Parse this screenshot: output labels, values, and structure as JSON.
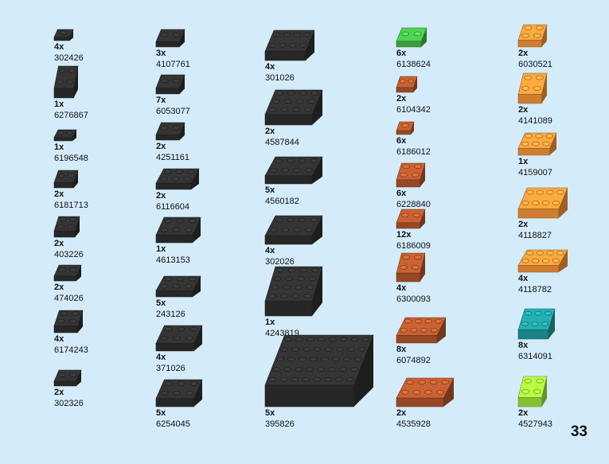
{
  "columns": [
    {
      "items": [
        {
          "qty": "4x",
          "id": "302426",
          "color": "#2e2e2e"
        },
        {
          "qty": "1x",
          "id": "6276867",
          "color": "#2e2e2e"
        },
        {
          "qty": "1x",
          "id": "6196548",
          "color": "#2e2e2e"
        },
        {
          "qty": "2x",
          "id": "6181713",
          "color": "#2e2e2e"
        },
        {
          "qty": "2x",
          "id": "403226",
          "color": "#2e2e2e"
        },
        {
          "qty": "2x",
          "id": "474026",
          "color": "#2e2e2e"
        },
        {
          "qty": "4x",
          "id": "6174243",
          "color": "#2e2e2e"
        },
        {
          "qty": "2x",
          "id": "302326",
          "color": "#2e2e2e"
        }
      ]
    },
    {
      "items": [
        {
          "qty": "3x",
          "id": "4107761",
          "color": "#2e2e2e"
        },
        {
          "qty": "7x",
          "id": "6053077",
          "color": "#2e2e2e"
        },
        {
          "qty": "2x",
          "id": "4251161",
          "color": "#2e2e2e"
        },
        {
          "qty": "2x",
          "id": "6116604",
          "color": "#2e2e2e"
        },
        {
          "qty": "1x",
          "id": "4613153",
          "color": "#2e2e2e"
        },
        {
          "qty": "5x",
          "id": "243126",
          "color": "#2e2e2e"
        },
        {
          "qty": "4x",
          "id": "371026",
          "color": "#2e2e2e"
        },
        {
          "qty": "5x",
          "id": "6254045",
          "color": "#2e2e2e"
        }
      ]
    },
    {
      "items": [
        {
          "qty": "4x",
          "id": "301026",
          "color": "#2e2e2e"
        },
        {
          "qty": "2x",
          "id": "4587844",
          "color": "#2e2e2e"
        },
        {
          "qty": "5x",
          "id": "4560182",
          "color": "#2e2e2e"
        },
        {
          "qty": "4x",
          "id": "302026",
          "color": "#2e2e2e"
        },
        {
          "qty": "1x",
          "id": "4243819",
          "color": "#2e2e2e"
        },
        {
          "qty": "5x",
          "id": "395826",
          "color": "#2e2e2e"
        }
      ]
    },
    {
      "items": [
        {
          "qty": "6x",
          "id": "6138624",
          "color": "#45b848"
        },
        {
          "qty": "2x",
          "id": "6104342",
          "color": "#b0552c"
        },
        {
          "qty": "6x",
          "id": "6186012",
          "color": "#b0552c"
        },
        {
          "qty": "6x",
          "id": "6228840",
          "color": "#b0552c"
        },
        {
          "qty": "12x",
          "id": "6186009",
          "color": "#b0552c"
        },
        {
          "qty": "4x",
          "id": "6300093",
          "color": "#b0552c"
        },
        {
          "qty": "8x",
          "id": "6074892",
          "color": "#b0552c"
        },
        {
          "qty": "2x",
          "id": "4535928",
          "color": "#b0552c"
        }
      ]
    },
    {
      "items": [
        {
          "qty": "2x",
          "id": "6030521",
          "color": "#f39337"
        },
        {
          "qty": "2x",
          "id": "4141089",
          "color": "#f39337"
        },
        {
          "qty": "1x",
          "id": "4159007",
          "color": "#f39337"
        },
        {
          "qty": "2x",
          "id": "4118827",
          "color": "#f39337"
        },
        {
          "qty": "4x",
          "id": "4118782",
          "color": "#f39337"
        },
        {
          "qty": "8x",
          "id": "6314091",
          "color": "#1f9a9c"
        },
        {
          "qty": "2x",
          "id": "4527943",
          "color": "#9ee23c"
        }
      ]
    }
  ],
  "page_number": "33"
}
